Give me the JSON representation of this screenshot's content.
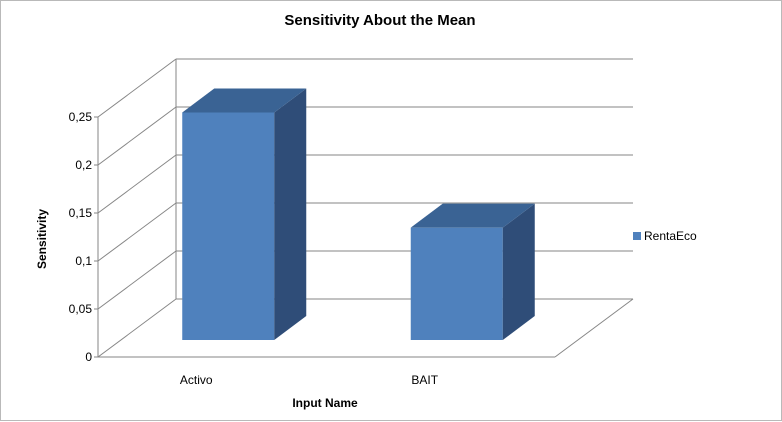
{
  "chart_data": {
    "type": "bar",
    "title": "Sensitivity About the Mean",
    "xlabel": "Input Name",
    "ylabel": "Sensitivity",
    "categories": [
      "Activo",
      "BAIT"
    ],
    "series": [
      {
        "name": "RentaEco",
        "values": [
          0.237,
          0.117
        ],
        "color": "#4f81bd"
      }
    ],
    "ylim": [
      0,
      0.25
    ],
    "yticks": [
      "0",
      "0,05",
      "0,1",
      "0,15",
      "0,2",
      "0,25"
    ],
    "grid": true,
    "style": "3d-column",
    "legend": "right"
  }
}
